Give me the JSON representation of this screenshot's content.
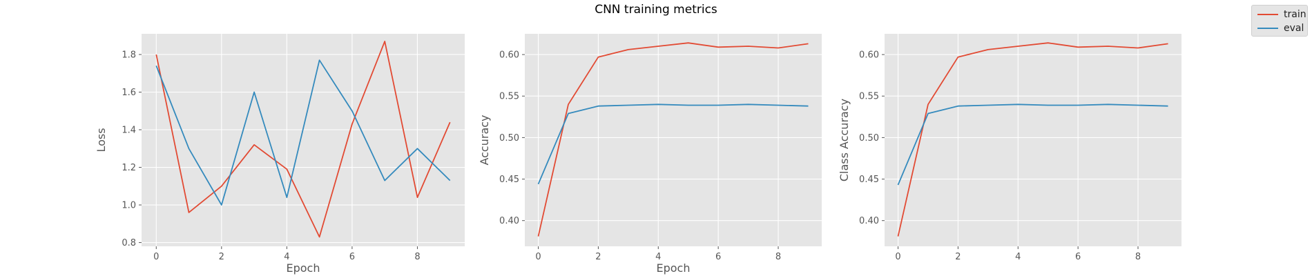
{
  "figure": {
    "title": "CNN training metrics",
    "legend": [
      {
        "label": "train",
        "color": "#E24A33"
      },
      {
        "label": "eval",
        "color": "#348ABD"
      }
    ],
    "style": {
      "panel_bg": "#E5E5E5",
      "grid": "#FFFFFF",
      "tick_text": "#555555",
      "label_text": "#555555"
    }
  },
  "chart_data": [
    {
      "type": "line",
      "xlabel": "Epoch",
      "ylabel": "Loss",
      "x": [
        0,
        1,
        2,
        3,
        4,
        5,
        6,
        7,
        8,
        9
      ],
      "xlim": [
        -0.45,
        9.45
      ],
      "ylim": [
        0.78,
        1.91
      ],
      "xticks": [
        "0",
        "2",
        "4",
        "6",
        "8"
      ],
      "yticks": [
        "0.8",
        "1.0",
        "1.2",
        "1.4",
        "1.6",
        "1.8"
      ],
      "grid": true,
      "series": [
        {
          "name": "train",
          "color": "#E24A33",
          "values": [
            1.8,
            0.96,
            1.1,
            1.32,
            1.19,
            0.83,
            1.43,
            1.87,
            1.04,
            1.44
          ]
        },
        {
          "name": "eval",
          "color": "#348ABD",
          "values": [
            1.74,
            1.3,
            1.0,
            1.6,
            1.04,
            1.77,
            1.5,
            1.13,
            1.3,
            1.13
          ]
        }
      ]
    },
    {
      "type": "line",
      "xlabel": "Epoch",
      "ylabel": "Accuracy",
      "x": [
        0,
        1,
        2,
        3,
        4,
        5,
        6,
        7,
        8,
        9
      ],
      "xlim": [
        -0.45,
        9.45
      ],
      "ylim": [
        0.369,
        0.625
      ],
      "xticks": [
        "0",
        "2",
        "4",
        "6",
        "8"
      ],
      "yticks": [
        "0.40",
        "0.45",
        "0.50",
        "0.55",
        "0.60"
      ],
      "grid": true,
      "series": [
        {
          "name": "train",
          "color": "#E24A33",
          "values": [
            0.381,
            0.54,
            0.597,
            0.606,
            0.61,
            0.614,
            0.609,
            0.61,
            0.608,
            0.613
          ]
        },
        {
          "name": "eval",
          "color": "#348ABD",
          "values": [
            0.444,
            0.529,
            0.538,
            0.539,
            0.54,
            0.539,
            0.539,
            0.54,
            0.539,
            0.538
          ]
        }
      ]
    },
    {
      "type": "line",
      "xlabel": "",
      "ylabel": "Class Accuracy",
      "x": [
        0,
        1,
        2,
        3,
        4,
        5,
        6,
        7,
        8,
        9
      ],
      "xlim": [
        -0.45,
        9.45
      ],
      "ylim": [
        0.369,
        0.625
      ],
      "xticks": [
        "0",
        "2",
        "4",
        "6",
        "8"
      ],
      "yticks": [
        "0.40",
        "0.45",
        "0.50",
        "0.55",
        "0.60"
      ],
      "grid": true,
      "series": [
        {
          "name": "train",
          "color": "#E24A33",
          "values": [
            0.381,
            0.54,
            0.597,
            0.606,
            0.61,
            0.614,
            0.609,
            0.61,
            0.608,
            0.613
          ]
        },
        {
          "name": "eval",
          "color": "#348ABD",
          "values": [
            0.443,
            0.529,
            0.538,
            0.539,
            0.54,
            0.539,
            0.539,
            0.54,
            0.539,
            0.538
          ]
        }
      ]
    }
  ]
}
